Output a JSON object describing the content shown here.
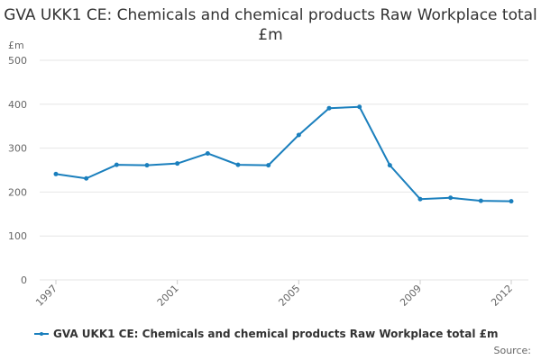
{
  "chart_data": {
    "type": "line",
    "title": "GVA UKK1 CE: Chemicals and chemical products Raw Workplace total £m",
    "ylabel": "£m",
    "xlabel": "",
    "x": [
      1997,
      1998,
      1999,
      2000,
      2001,
      2002,
      2003,
      2004,
      2005,
      2006,
      2007,
      2008,
      2009,
      2010,
      2011,
      2012
    ],
    "x_tick_labels": [
      "1997",
      "2001",
      "2005",
      "2009",
      "2012"
    ],
    "ylim": [
      0,
      500
    ],
    "y_ticks": [
      0,
      100,
      200,
      300,
      400,
      500
    ],
    "grid": true,
    "legend_position": "bottom-left",
    "series": [
      {
        "name": "GVA UKK1 CE: Chemicals and chemical products Raw Workplace total £m",
        "values": [
          241,
          231,
          262,
          261,
          265,
          288,
          262,
          261,
          330,
          391,
          394,
          261,
          184,
          187,
          180,
          179
        ],
        "color": "#1a7fbd"
      }
    ]
  },
  "footer": {
    "source_label": "Source:"
  },
  "colors": {
    "gridline": "#e6e6e6",
    "axis_text": "#666666",
    "title_text": "#333333"
  }
}
